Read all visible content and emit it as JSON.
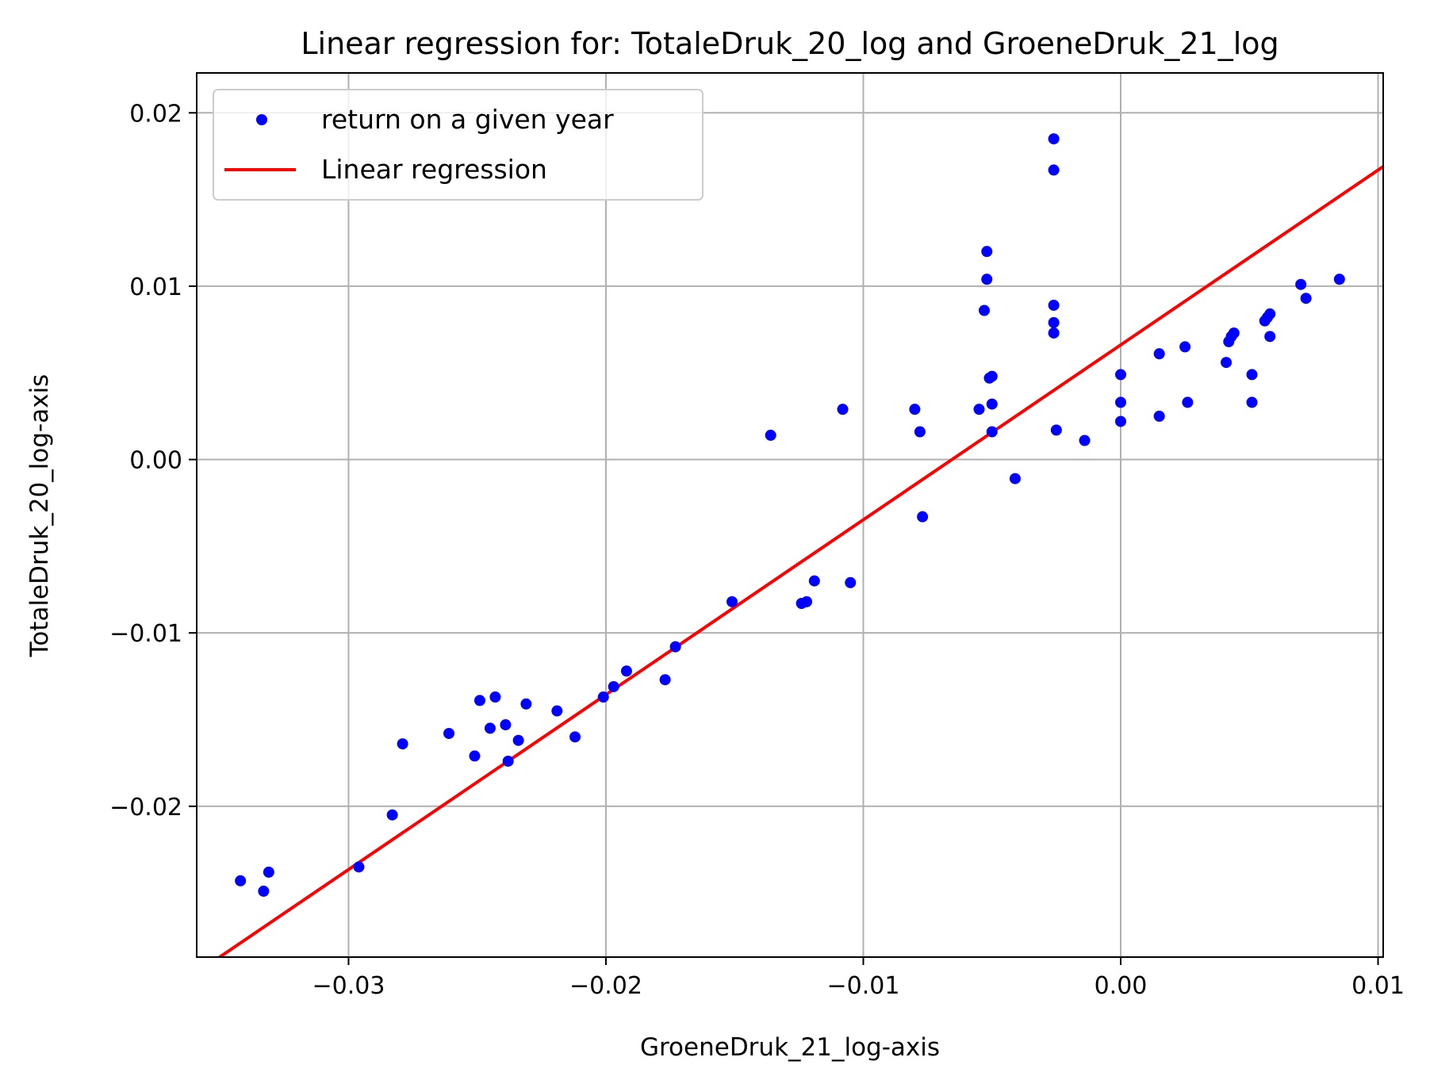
{
  "chart_data": {
    "type": "scatter",
    "title": "Linear regression for: TotaleDruk_20_log and GroeneDruk_21_log",
    "xlabel": "GroeneDruk_21_log-axis",
    "ylabel": "TotaleDruk_20_log-axis",
    "xlim": [
      -0.0359,
      0.0102
    ],
    "ylim": [
      -0.0287,
      0.0223
    ],
    "xticks": [
      -0.03,
      -0.02,
      -0.01,
      0.0,
      0.01
    ],
    "xtick_labels": [
      "−0.03",
      "−0.02",
      "−0.01",
      "0.00",
      "0.01"
    ],
    "yticks": [
      -0.02,
      -0.01,
      0.0,
      0.01,
      0.02
    ],
    "ytick_labels": [
      "−0.02",
      "−0.01",
      "0.00",
      "0.01",
      "0.02"
    ],
    "grid": true,
    "legend_position": "top-left",
    "series": [
      {
        "name": "return on a given year",
        "kind": "scatter",
        "color": "#0000ff",
        "points": [
          [
            -0.0342,
            -0.0243
          ],
          [
            -0.0333,
            -0.0249
          ],
          [
            -0.0331,
            -0.0238
          ],
          [
            -0.0296,
            -0.0235
          ],
          [
            -0.0283,
            -0.0205
          ],
          [
            -0.0279,
            -0.0164
          ],
          [
            -0.0261,
            -0.0158
          ],
          [
            -0.0251,
            -0.0171
          ],
          [
            -0.0249,
            -0.0139
          ],
          [
            -0.0245,
            -0.0155
          ],
          [
            -0.0243,
            -0.0137
          ],
          [
            -0.0239,
            -0.0153
          ],
          [
            -0.0238,
            -0.0174
          ],
          [
            -0.0234,
            -0.0162
          ],
          [
            -0.0231,
            -0.0141
          ],
          [
            -0.0219,
            -0.0145
          ],
          [
            -0.0212,
            -0.016
          ],
          [
            -0.0201,
            -0.0137
          ],
          [
            -0.0197,
            -0.0131
          ],
          [
            -0.0192,
            -0.0122
          ],
          [
            -0.0177,
            -0.0127
          ],
          [
            -0.0173,
            -0.0108
          ],
          [
            -0.0151,
            -0.0082
          ],
          [
            -0.0136,
            0.0014
          ],
          [
            -0.0124,
            -0.0083
          ],
          [
            -0.0122,
            -0.0082
          ],
          [
            -0.0119,
            -0.007
          ],
          [
            -0.0108,
            0.0029
          ],
          [
            -0.0105,
            -0.0071
          ],
          [
            -0.008,
            0.0029
          ],
          [
            -0.0078,
            0.0016
          ],
          [
            -0.0077,
            -0.0033
          ],
          [
            -0.0055,
            0.0029
          ],
          [
            -0.0053,
            0.0086
          ],
          [
            -0.0052,
            0.0104
          ],
          [
            -0.0052,
            0.012
          ],
          [
            -0.0051,
            0.0047
          ],
          [
            -0.005,
            0.0032
          ],
          [
            -0.005,
            0.0048
          ],
          [
            -0.005,
            0.0016
          ],
          [
            -0.0041,
            -0.0011
          ],
          [
            -0.0026,
            0.0185
          ],
          [
            -0.0026,
            0.0167
          ],
          [
            -0.0026,
            0.0089
          ],
          [
            -0.0026,
            0.0079
          ],
          [
            -0.0026,
            0.0073
          ],
          [
            -0.0025,
            0.0017
          ],
          [
            -0.0014,
            0.0011
          ],
          [
            0.0,
            0.0049
          ],
          [
            0.0,
            0.0033
          ],
          [
            0.0,
            0.0022
          ],
          [
            0.0015,
            0.0061
          ],
          [
            0.0015,
            0.0025
          ],
          [
            0.0025,
            0.0065
          ],
          [
            0.0026,
            0.0033
          ],
          [
            0.0041,
            0.0056
          ],
          [
            0.0042,
            0.0068
          ],
          [
            0.0043,
            0.0071
          ],
          [
            0.0044,
            0.0073
          ],
          [
            0.0051,
            0.0049
          ],
          [
            0.0051,
            0.0033
          ],
          [
            0.0056,
            0.008
          ],
          [
            0.0057,
            0.0082
          ],
          [
            0.0058,
            0.0071
          ],
          [
            0.0058,
            0.0084
          ],
          [
            0.007,
            0.0101
          ],
          [
            0.0072,
            0.0093
          ],
          [
            0.0085,
            0.0104
          ]
        ]
      },
      {
        "name": "Linear regression",
        "kind": "line",
        "color": "#ff0000",
        "points": [
          [
            -0.0359,
            -0.0296
          ],
          [
            0.0102,
            0.0169
          ]
        ]
      }
    ]
  }
}
